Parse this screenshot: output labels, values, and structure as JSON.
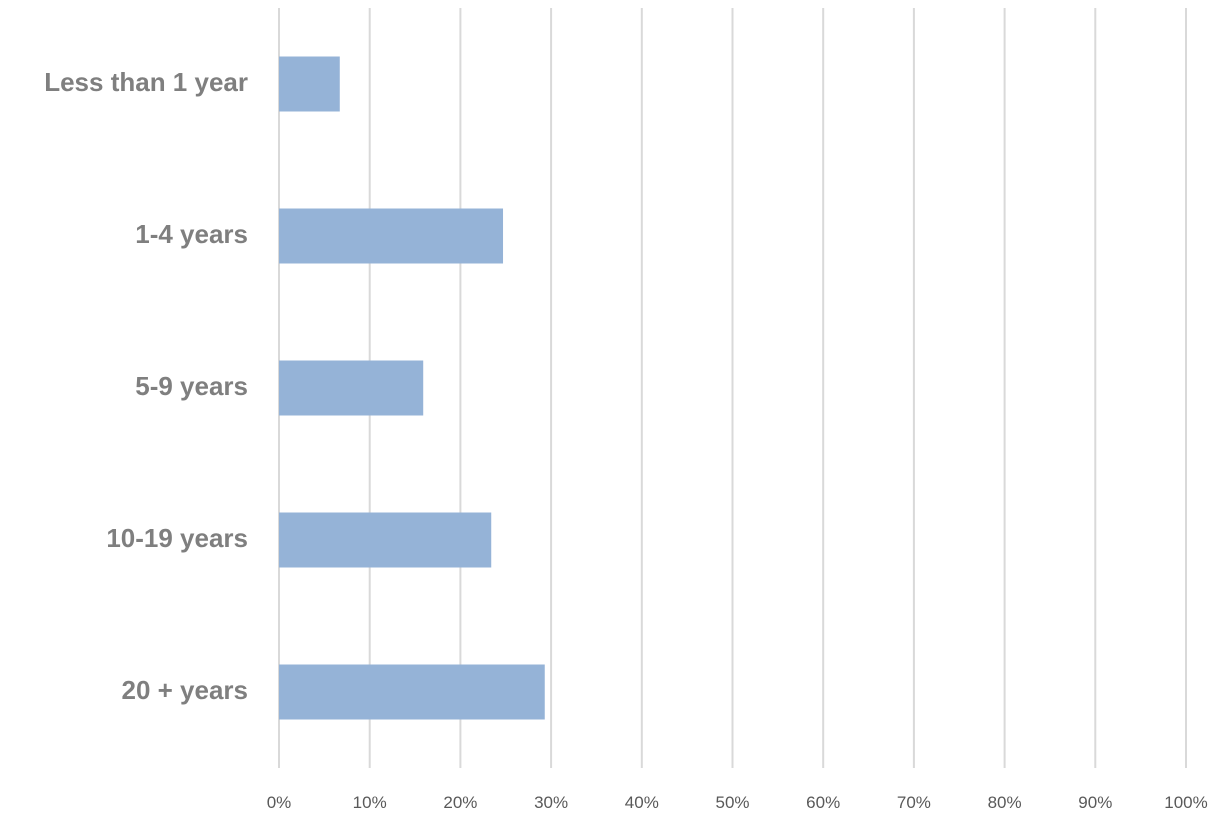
{
  "chart_data": {
    "type": "bar",
    "orientation": "horizontal",
    "categories": [
      "Less than 1 year",
      "1-4 years",
      "5-9 years",
      "10-19 years",
      "20 + years"
    ],
    "series": [
      {
        "values": [
          6.7,
          24.7,
          15.9,
          23.4,
          29.3
        ]
      }
    ],
    "xlim": [
      0,
      100
    ],
    "x_ticks": [
      "0%",
      "10%",
      "20%",
      "30%",
      "40%",
      "50%",
      "60%",
      "70%",
      "80%",
      "90%",
      "100%"
    ],
    "grid": "vertical",
    "bar_color": "#95b3d7",
    "title": "",
    "xlabel": "",
    "ylabel": ""
  }
}
